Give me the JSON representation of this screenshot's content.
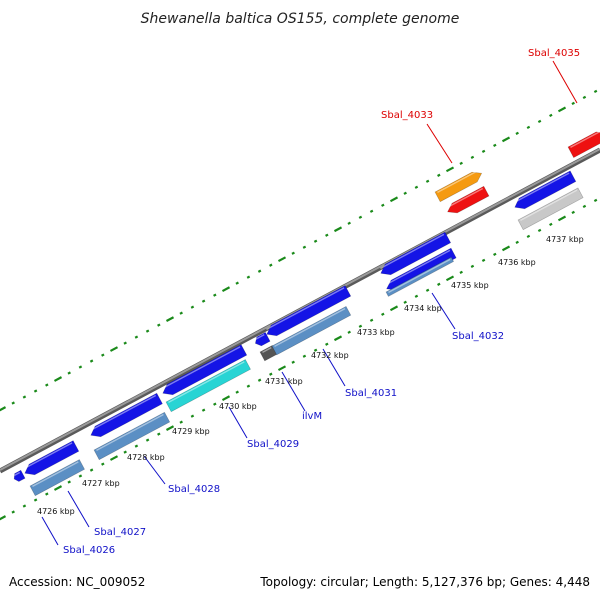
{
  "title": "Shewanella baltica OS155, complete genome",
  "accession": "Accession: NC_009052",
  "topology": "Topology: circular; Length: 5,127,376 bp; Genes: 4,448",
  "colors": {
    "backbone": "#808080",
    "dots": "#1a8a1a",
    "gene_blue": "#1414e6",
    "gene_lightblue": "#5b8fc4",
    "gene_cyan": "#28d4d4",
    "gene_red": "#ee1111",
    "gene_orange": "#f59a10",
    "gene_gray": "#c8c8c8",
    "gene_darkgray": "#555555",
    "label_blue": "#1010c8",
    "label_red": "#dd0000"
  },
  "kbp_labels": [
    "4726 kbp",
    "4727 kbp",
    "4728 kbp",
    "4729 kbp",
    "4730 kbp",
    "4731 kbp",
    "4732 kbp",
    "4733 kbp",
    "4734 kbp",
    "4735 kbp",
    "4736 kbp",
    "4737 kbp"
  ],
  "gene_labels": [
    {
      "text": "Sbal_4026",
      "color": "blue"
    },
    {
      "text": "Sbal_4027",
      "color": "blue"
    },
    {
      "text": "Sbal_4028",
      "color": "blue"
    },
    {
      "text": "Sbal_4029",
      "color": "blue"
    },
    {
      "text": "ilvM",
      "color": "blue"
    },
    {
      "text": "Sbal_4031",
      "color": "blue"
    },
    {
      "text": "Sbal_4032",
      "color": "blue"
    },
    {
      "text": "Sbal_4033",
      "color": "red"
    },
    {
      "text": "Sbal_4035",
      "color": "red"
    }
  ]
}
